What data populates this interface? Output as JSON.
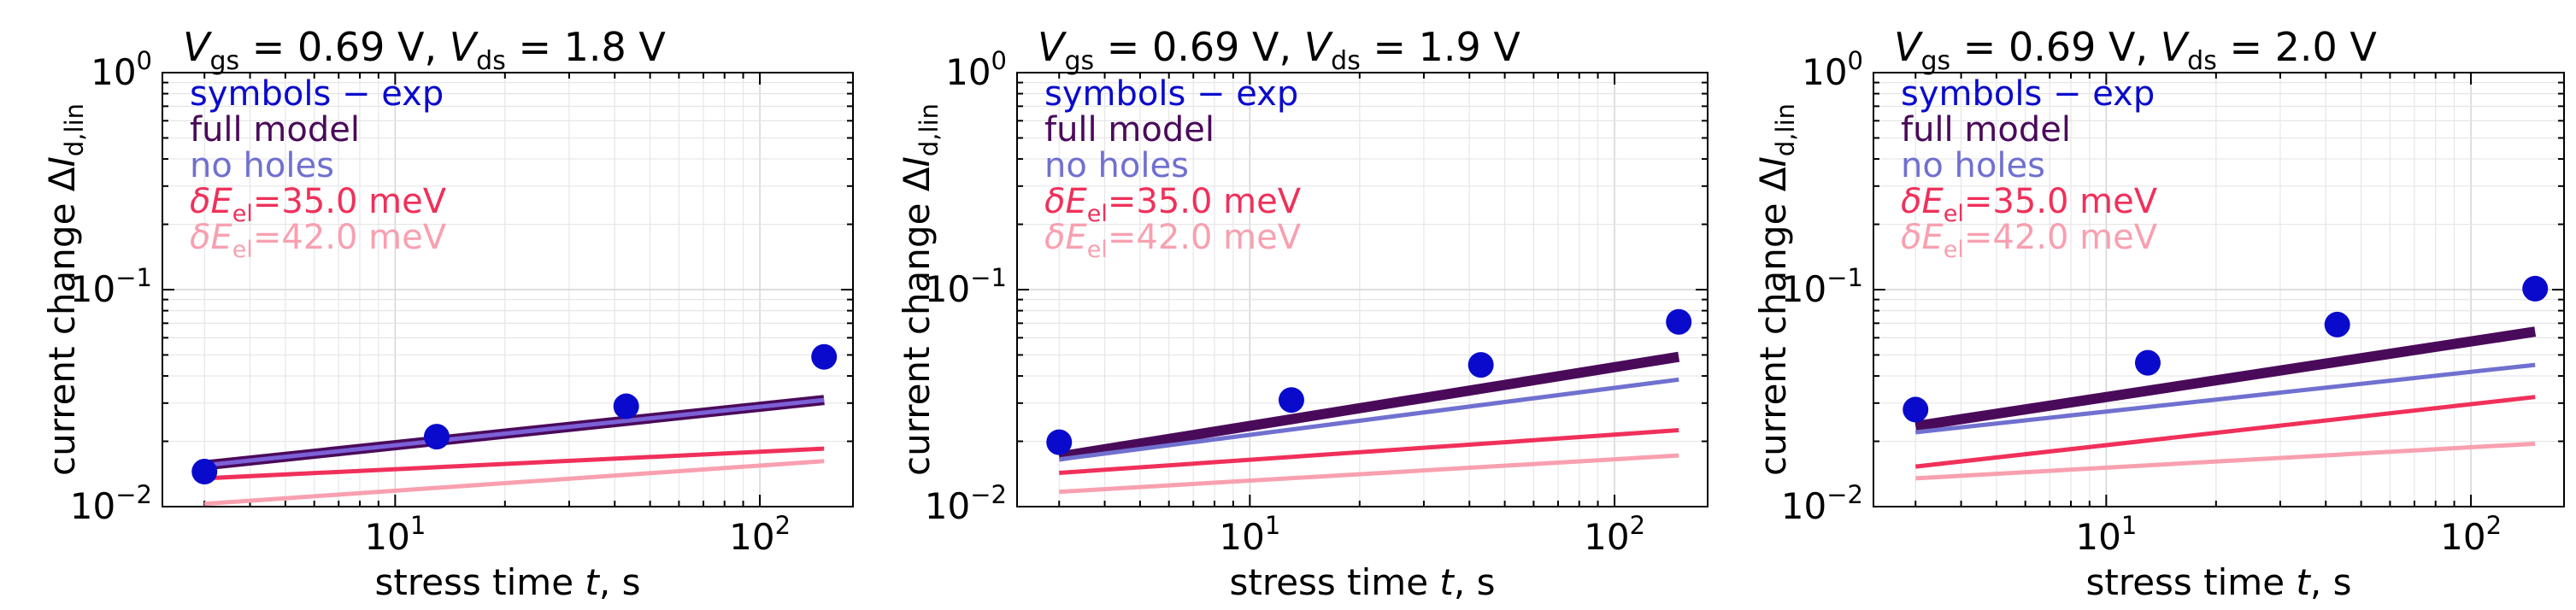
{
  "chart_data": [
    {
      "type": "line",
      "title_parts": {
        "vgs_sym": "V",
        "vgs_sub": "gs",
        "vgs_val": " = 0.69 V, ",
        "vds_sym": "V",
        "vds_sub": "ds",
        "vds_val": " = 1.8 V"
      },
      "xlabel": {
        "text": "stress time ",
        "sym": "t",
        "unit": ", s"
      },
      "ylabel": {
        "text": "current change Δ",
        "sym": "I",
        "sub": "d,lin"
      },
      "xscale": "log",
      "yscale": "log",
      "xlim": [
        2.3,
        180
      ],
      "ylim": [
        0.01,
        1.0
      ],
      "xticks": [
        {
          "value": 10,
          "base": "10",
          "exp": "1"
        },
        {
          "value": 100,
          "base": "10",
          "exp": "2"
        }
      ],
      "yticks": [
        {
          "value": 0.01,
          "base": "10",
          "exp": "−2"
        },
        {
          "value": 0.1,
          "base": "10",
          "exp": "−1"
        },
        {
          "value": 1.0,
          "base": "10",
          "exp": "0"
        }
      ],
      "legend": [
        {
          "label": "symbols − exp",
          "color": "#0a0acd"
        },
        {
          "label": "full model",
          "color": "#4a0a5a"
        },
        {
          "label": "no holes",
          "color": "#7070d0"
        },
        {
          "prefix": "δ",
          "sym": "E",
          "sub": "el",
          "label": "=35.0 meV",
          "color": "#f0305a"
        },
        {
          "prefix": "δ",
          "sym": "E",
          "sub": "el",
          "label": "=42.0 meV",
          "color": "#f8a0b0"
        }
      ],
      "legend_position": "top-left",
      "exp_points": {
        "x": [
          3,
          13,
          43,
          150
        ],
        "y": [
          0.0145,
          0.021,
          0.029,
          0.049
        ],
        "color": "#0a0acd"
      },
      "series": [
        {
          "name": "full model",
          "x": [
            3,
            150
          ],
          "y": [
            0.0155,
            0.031
          ],
          "color": "#4a0a5a",
          "width": 12
        },
        {
          "name": "no holes",
          "x": [
            3,
            150
          ],
          "y": [
            0.0155,
            0.031
          ],
          "color": "#7c60d8",
          "width": 5
        },
        {
          "name": "δEel=35.0 meV",
          "x": [
            3,
            150
          ],
          "y": [
            0.0135,
            0.0185
          ],
          "color": "#f0305a",
          "width": 5
        },
        {
          "name": "δEel=42.0 meV",
          "x": [
            3,
            150
          ],
          "y": [
            0.0103,
            0.0162
          ],
          "color": "#f8a0b0",
          "width": 5
        }
      ]
    },
    {
      "type": "line",
      "title_parts": {
        "vgs_sym": "V",
        "vgs_sub": "gs",
        "vgs_val": " = 0.69 V, ",
        "vds_sym": "V",
        "vds_sub": "ds",
        "vds_val": " = 1.9 V"
      },
      "xlabel": {
        "text": "stress time ",
        "sym": "t",
        "unit": ", s"
      },
      "ylabel": {
        "text": "current change Δ",
        "sym": "I",
        "sub": "d,lin"
      },
      "xscale": "log",
      "yscale": "log",
      "xlim": [
        2.3,
        180
      ],
      "ylim": [
        0.01,
        1.0
      ],
      "xticks": [
        {
          "value": 10,
          "base": "10",
          "exp": "1"
        },
        {
          "value": 100,
          "base": "10",
          "exp": "2"
        }
      ],
      "yticks": [
        {
          "value": 0.01,
          "base": "10",
          "exp": "−2"
        },
        {
          "value": 0.1,
          "base": "10",
          "exp": "−1"
        },
        {
          "value": 1.0,
          "base": "10",
          "exp": "0"
        }
      ],
      "legend": [
        {
          "label": "symbols − exp",
          "color": "#0a0acd"
        },
        {
          "label": "full model",
          "color": "#4a0a5a"
        },
        {
          "label": "no holes",
          "color": "#7070d0"
        },
        {
          "prefix": "δ",
          "sym": "E",
          "sub": "el",
          "label": "=35.0 meV",
          "color": "#f0305a"
        },
        {
          "prefix": "δ",
          "sym": "E",
          "sub": "el",
          "label": "=42.0 meV",
          "color": "#f8a0b0"
        }
      ],
      "legend_position": "top-left",
      "exp_points": {
        "x": [
          3,
          13,
          43,
          150
        ],
        "y": [
          0.0198,
          0.031,
          0.045,
          0.071
        ],
        "color": "#0a0acd"
      },
      "series": [
        {
          "name": "full model",
          "x": [
            3,
            150
          ],
          "y": [
            0.017,
            0.049
          ],
          "color": "#4a0a5a",
          "width": 12
        },
        {
          "name": "no holes",
          "x": [
            3,
            150
          ],
          "y": [
            0.0165,
            0.0385
          ],
          "color": "#7070d0",
          "width": 5
        },
        {
          "name": "δEel=35.0 meV",
          "x": [
            3,
            150
          ],
          "y": [
            0.0143,
            0.0225
          ],
          "color": "#f0305a",
          "width": 5
        },
        {
          "name": "δEel=42.0 meV",
          "x": [
            3,
            150
          ],
          "y": [
            0.0117,
            0.0172
          ],
          "color": "#f8a0b0",
          "width": 5
        }
      ]
    },
    {
      "type": "line",
      "title_parts": {
        "vgs_sym": "V",
        "vgs_sub": "gs",
        "vgs_val": " = 0.69 V, ",
        "vds_sym": "V",
        "vds_sub": "ds",
        "vds_val": " = 2.0 V"
      },
      "xlabel": {
        "text": "stress time ",
        "sym": "t",
        "unit": ", s"
      },
      "ylabel": {
        "text": "current change Δ",
        "sym": "I",
        "sub": "d,lin"
      },
      "xscale": "log",
      "yscale": "log",
      "xlim": [
        2.3,
        180
      ],
      "ylim": [
        0.01,
        1.0
      ],
      "xticks": [
        {
          "value": 10,
          "base": "10",
          "exp": "1"
        },
        {
          "value": 100,
          "base": "10",
          "exp": "2"
        }
      ],
      "yticks": [
        {
          "value": 0.01,
          "base": "10",
          "exp": "−2"
        },
        {
          "value": 0.1,
          "base": "10",
          "exp": "−1"
        },
        {
          "value": 1.0,
          "base": "10",
          "exp": "0"
        }
      ],
      "legend": [
        {
          "label": "symbols − exp",
          "color": "#0a0acd"
        },
        {
          "label": "full model",
          "color": "#4a0a5a"
        },
        {
          "label": "no holes",
          "color": "#7070d0"
        },
        {
          "prefix": "δ",
          "sym": "E",
          "sub": "el",
          "label": "=35.0 meV",
          "color": "#f0305a"
        },
        {
          "prefix": "δ",
          "sym": "E",
          "sub": "el",
          "label": "=42.0 meV",
          "color": "#f8a0b0"
        }
      ],
      "legend_position": "top-left",
      "exp_points": {
        "x": [
          3,
          13,
          43,
          150
        ],
        "y": [
          0.028,
          0.046,
          0.069,
          0.101
        ],
        "color": "#0a0acd"
      },
      "series": [
        {
          "name": "full model",
          "x": [
            3,
            150
          ],
          "y": [
            0.0235,
            0.064
          ],
          "color": "#4a0a5a",
          "width": 12
        },
        {
          "name": "no holes",
          "x": [
            3,
            150
          ],
          "y": [
            0.022,
            0.045
          ],
          "color": "#7070d0",
          "width": 5
        },
        {
          "name": "δEel=35.0 meV",
          "x": [
            3,
            150
          ],
          "y": [
            0.0153,
            0.032
          ],
          "color": "#f0305a",
          "width": 5
        },
        {
          "name": "δEel=42.0 meV",
          "x": [
            3,
            150
          ],
          "y": [
            0.0135,
            0.0195
          ],
          "color": "#f8a0b0",
          "width": 5
        }
      ]
    }
  ]
}
